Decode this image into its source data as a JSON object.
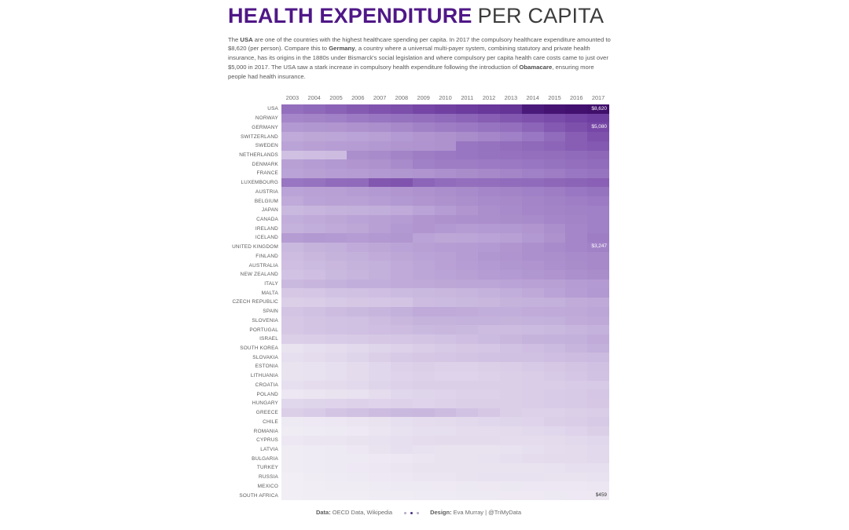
{
  "page": {
    "background": "#ffffff"
  },
  "title": {
    "main": "HEALTH EXPENDITURE",
    "sub": "PER CAPITA",
    "main_color": "#4f1787",
    "sub_color": "#3c3c3c"
  },
  "intro": {
    "segments": [
      {
        "text": "The ",
        "bold": false
      },
      {
        "text": "USA",
        "bold": true
      },
      {
        "text": " are one of the countries with the highest healthcare spending per capita. In 2017 the compulsory healthcare expenditure amounted to $8,620 (per person). Compare this to ",
        "bold": false
      },
      {
        "text": "Germany",
        "bold": true
      },
      {
        "text": ", a country where a universal multi-payer system, combining statutory and private health insurance, has its origins in the 1880s under Bismarck's social legislation and where compulsory per capita health care costs came to just over $5,000 in 2017. The USA saw a stark increase in compulsory health expenditure following the introduction of ",
        "bold": false
      },
      {
        "text": "Obamacare",
        "bold": true
      },
      {
        "text": ", ensuring more people had health insurance.",
        "bold": false
      }
    ]
  },
  "chart_data": {
    "type": "heatmap",
    "title": "HEALTH EXPENDITURE PER CAPITA",
    "unit": "USD per person (compulsory health expenditure, estimated from color scale)",
    "x": [
      2003,
      2004,
      2005,
      2006,
      2007,
      2008,
      2009,
      2010,
      2011,
      2012,
      2013,
      2014,
      2015,
      2016,
      2017
    ],
    "color_scale": {
      "stops": [
        [
          0,
          "#f6f4f8"
        ],
        [
          500,
          "#ece7f2"
        ],
        [
          1000,
          "#ded3ea"
        ],
        [
          1500,
          "#d0c0e2"
        ],
        [
          2000,
          "#c2aeda"
        ],
        [
          2500,
          "#b59cd3"
        ],
        [
          3000,
          "#a88bca"
        ],
        [
          3500,
          "#9b79c3"
        ],
        [
          4000,
          "#8f69ba"
        ],
        [
          4500,
          "#8257b0"
        ],
        [
          5000,
          "#7849a8"
        ],
        [
          5500,
          "#6c3c9e"
        ],
        [
          6000,
          "#603093"
        ],
        [
          6500,
          "#562689"
        ],
        [
          7000,
          "#4e1d7f"
        ],
        [
          7500,
          "#481878"
        ],
        [
          8000,
          "#441372"
        ],
        [
          8700,
          "#3f0e6a"
        ]
      ]
    },
    "rows": [
      {
        "country": "USA",
        "values": [
          3800,
          4000,
          4200,
          4400,
          4600,
          4800,
          5100,
          5300,
          5500,
          5650,
          5850,
          7300,
          7900,
          8300,
          8620
        ]
      },
      {
        "country": "NORWAY",
        "values": [
          3100,
          3200,
          3300,
          3450,
          3600,
          3700,
          3800,
          3950,
          4100,
          4300,
          4500,
          4700,
          4900,
          5150,
          5400
        ]
      },
      {
        "country": "GERMANY",
        "values": [
          2600,
          2650,
          2700,
          2780,
          2900,
          3050,
          3250,
          3400,
          3500,
          3650,
          3800,
          4100,
          4450,
          4750,
          5080
        ]
      },
      {
        "country": "SWITZERLAND",
        "values": [
          2100,
          2200,
          2250,
          2300,
          2400,
          2550,
          2700,
          2800,
          2950,
          3100,
          3300,
          3550,
          3900,
          4300,
          4700
        ]
      },
      {
        "country": "SWEDEN",
        "values": [
          2300,
          2400,
          2450,
          2500,
          2600,
          2700,
          2750,
          2800,
          3600,
          3700,
          3850,
          4000,
          4100,
          4300,
          4450
        ]
      },
      {
        "country": "NETHERLANDS",
        "values": [
          1500,
          1550,
          1600,
          2900,
          3000,
          3200,
          3400,
          3500,
          3600,
          3700,
          3750,
          3800,
          3850,
          3950,
          4050
        ]
      },
      {
        "country": "DENMARK",
        "values": [
          2400,
          2500,
          2600,
          2700,
          2800,
          3000,
          3300,
          3400,
          3400,
          3450,
          3500,
          3600,
          3700,
          3800,
          3900
        ]
      },
      {
        "country": "FRANCE",
        "values": [
          2300,
          2400,
          2450,
          2500,
          2600,
          2650,
          2750,
          2850,
          2950,
          3050,
          3150,
          3300,
          3400,
          3550,
          3650
        ]
      },
      {
        "country": "LUXEMBOURG",
        "values": [
          3600,
          3700,
          3900,
          3950,
          4500,
          4600,
          4100,
          3900,
          3800,
          3850,
          3900,
          3950,
          4050,
          4150,
          4250
        ]
      },
      {
        "country": "AUSTRIA",
        "values": [
          2300,
          2350,
          2400,
          2500,
          2600,
          2700,
          2800,
          2900,
          3000,
          3100,
          3200,
          3300,
          3400,
          3550,
          3700
        ]
      },
      {
        "country": "BELGIUM",
        "values": [
          2100,
          2300,
          2350,
          2350,
          2450,
          2600,
          2700,
          2800,
          2900,
          3000,
          3050,
          3150,
          3250,
          3350,
          3450
        ]
      },
      {
        "country": "JAPAN",
        "values": [
          1700,
          1800,
          1900,
          1950,
          2000,
          2100,
          2300,
          2500,
          2700,
          2900,
          3000,
          3100,
          3200,
          3250,
          3300
        ]
      },
      {
        "country": "CANADA",
        "values": [
          2000,
          2100,
          2200,
          2300,
          2400,
          2500,
          2700,
          2800,
          2850,
          2900,
          2950,
          3000,
          3100,
          3200,
          3300
        ]
      },
      {
        "country": "IRELAND",
        "values": [
          1900,
          2000,
          2100,
          2200,
          2400,
          2600,
          2700,
          2600,
          2500,
          2550,
          2600,
          2700,
          2900,
          3100,
          3300
        ]
      },
      {
        "country": "ICELAND",
        "values": [
          2500,
          2600,
          2550,
          2500,
          2600,
          2650,
          2300,
          2200,
          2250,
          2300,
          2400,
          2600,
          2800,
          3100,
          3400
        ]
      },
      {
        "country": "UNITED KINGDOM",
        "values": [
          1700,
          1850,
          1950,
          2100,
          2200,
          2300,
          2400,
          2450,
          2500,
          2550,
          2700,
          2850,
          3000,
          3100,
          3247
        ]
      },
      {
        "country": "FINLAND",
        "values": [
          1600,
          1750,
          1850,
          1950,
          2050,
          2200,
          2300,
          2350,
          2500,
          2650,
          2750,
          2850,
          2900,
          3000,
          3050
        ]
      },
      {
        "country": "AUSTRALIA",
        "values": [
          1550,
          1650,
          1750,
          1850,
          1950,
          2100,
          2250,
          2350,
          2450,
          2550,
          2650,
          2750,
          2850,
          2950,
          3050
        ]
      },
      {
        "country": "NEW ZEALAND",
        "values": [
          1450,
          1550,
          1700,
          1800,
          1950,
          2100,
          2250,
          2300,
          2400,
          2500,
          2550,
          2650,
          2750,
          2850,
          2950
        ]
      },
      {
        "country": "ITALY",
        "values": [
          1700,
          1800,
          1900,
          2000,
          2000,
          2100,
          2150,
          2200,
          2250,
          2250,
          2300,
          2350,
          2400,
          2500,
          2550
        ]
      },
      {
        "country": "MALTA",
        "values": [
          1300,
          1350,
          1450,
          1500,
          1550,
          1650,
          1700,
          1750,
          1800,
          1900,
          2000,
          2150,
          2300,
          2450,
          2600
        ]
      },
      {
        "country": "CZECH REPUBLIC",
        "values": [
          1100,
          1150,
          1250,
          1300,
          1350,
          1400,
          1600,
          1650,
          1700,
          1750,
          1850,
          1900,
          1950,
          2050,
          2150
        ]
      },
      {
        "country": "SPAIN",
        "values": [
          1400,
          1500,
          1600,
          1700,
          1800,
          1950,
          2100,
          2100,
          2050,
          2000,
          2000,
          2050,
          2100,
          2150,
          2250
        ]
      },
      {
        "country": "SLOVENIA",
        "values": [
          1300,
          1400,
          1450,
          1500,
          1600,
          1750,
          1850,
          1850,
          1900,
          1900,
          1850,
          1900,
          1950,
          2050,
          2150
        ]
      },
      {
        "country": "PORTUGAL",
        "values": [
          1300,
          1400,
          1450,
          1500,
          1550,
          1600,
          1700,
          1750,
          1700,
          1600,
          1600,
          1650,
          1700,
          1800,
          1900
        ]
      },
      {
        "country": "ISRAEL",
        "values": [
          1100,
          1150,
          1200,
          1250,
          1300,
          1350,
          1400,
          1450,
          1550,
          1650,
          1750,
          1850,
          1900,
          1950,
          2050
        ]
      },
      {
        "country": "SOUTH KOREA",
        "values": [
          600,
          700,
          750,
          850,
          950,
          1050,
          1150,
          1250,
          1300,
          1350,
          1450,
          1550,
          1650,
          1800,
          1950
        ]
      },
      {
        "country": "SLOVAKIA",
        "values": [
          700,
          750,
          850,
          950,
          1100,
          1250,
          1300,
          1350,
          1400,
          1450,
          1500,
          1500,
          1550,
          1600,
          1650
        ]
      },
      {
        "country": "ESTONIA",
        "values": [
          600,
          650,
          700,
          800,
          900,
          1050,
          1100,
          1050,
          1050,
          1100,
          1150,
          1250,
          1300,
          1400,
          1500
        ]
      },
      {
        "country": "LITHUANIA",
        "values": [
          600,
          650,
          700,
          800,
          900,
          1000,
          1050,
          1000,
          1000,
          1050,
          1100,
          1150,
          1250,
          1350,
          1450
        ]
      },
      {
        "country": "CROATIA",
        "values": [
          700,
          750,
          800,
          850,
          950,
          1050,
          1100,
          1100,
          1100,
          1100,
          1100,
          1150,
          1150,
          1200,
          1250
        ]
      },
      {
        "country": "POLAND",
        "values": [
          500,
          550,
          600,
          650,
          750,
          900,
          950,
          1000,
          1050,
          1050,
          1100,
          1150,
          1200,
          1250,
          1350
        ]
      },
      {
        "country": "HUNGARY",
        "values": [
          900,
          950,
          1000,
          1050,
          1000,
          1050,
          1000,
          1050,
          1100,
          1100,
          1100,
          1150,
          1200,
          1250,
          1300
        ]
      },
      {
        "country": "GREECE",
        "values": [
          1100,
          1200,
          1400,
          1500,
          1600,
          1700,
          1750,
          1600,
          1450,
          1300,
          1100,
          1050,
          1050,
          1100,
          1150
        ]
      },
      {
        "country": "CHILE",
        "values": [
          400,
          450,
          500,
          550,
          600,
          700,
          750,
          800,
          850,
          900,
          950,
          1000,
          1100,
          1150,
          1250
        ]
      },
      {
        "country": "ROMANIA",
        "values": [
          300,
          350,
          400,
          450,
          550,
          650,
          700,
          700,
          750,
          750,
          800,
          850,
          900,
          1000,
          1100
        ]
      },
      {
        "country": "CYPRUS",
        "values": [
          500,
          550,
          550,
          600,
          650,
          700,
          750,
          800,
          800,
          800,
          750,
          750,
          800,
          850,
          900
        ]
      },
      {
        "country": "LATVIA",
        "values": [
          300,
          350,
          400,
          500,
          600,
          700,
          650,
          600,
          600,
          600,
          650,
          700,
          750,
          800,
          850
        ]
      },
      {
        "country": "BULGARIA",
        "values": [
          300,
          350,
          400,
          400,
          450,
          500,
          550,
          600,
          600,
          650,
          700,
          750,
          800,
          800,
          850
        ]
      },
      {
        "country": "TURKEY",
        "values": [
          300,
          350,
          400,
          450,
          500,
          550,
          600,
          600,
          600,
          600,
          600,
          600,
          650,
          700,
          700
        ]
      },
      {
        "country": "RUSSIA",
        "values": [
          250,
          300,
          350,
          400,
          450,
          500,
          550,
          550,
          600,
          650,
          650,
          650,
          600,
          600,
          650
        ]
      },
      {
        "country": "MEXICO",
        "values": [
          250,
          280,
          300,
          320,
          350,
          380,
          400,
          420,
          440,
          460,
          480,
          500,
          500,
          500,
          520
        ]
      },
      {
        "country": "SOUTH AFRICA",
        "values": [
          250,
          260,
          270,
          280,
          300,
          320,
          340,
          360,
          380,
          400,
          410,
          420,
          430,
          445,
          459
        ]
      }
    ],
    "annotations": [
      {
        "country": "USA",
        "year": 2017,
        "text": "$8,620",
        "text_color": "#ffffff"
      },
      {
        "country": "GERMANY",
        "year": 2017,
        "text": "$5,080",
        "text_color": "#ffffff"
      },
      {
        "country": "UNITED KINGDOM",
        "year": 2017,
        "text": "$3,247",
        "text_color": "#ffffff"
      },
      {
        "country": "SOUTH AFRICA",
        "year": 2017,
        "text": "$459",
        "text_color": "#333333"
      }
    ],
    "textured_cells": [
      {
        "country": "USA",
        "years": [
          2014,
          2015,
          2016
        ]
      }
    ]
  },
  "footer": {
    "data_label": "Data:",
    "data_text": " OECD Data, Wikipedia",
    "design_label": "Design:",
    "design_text": " Eva Murray | @TriMyData",
    "dot_colors": [
      "#b3a8c6",
      "#4f2d86",
      "#b3a8c6"
    ]
  }
}
